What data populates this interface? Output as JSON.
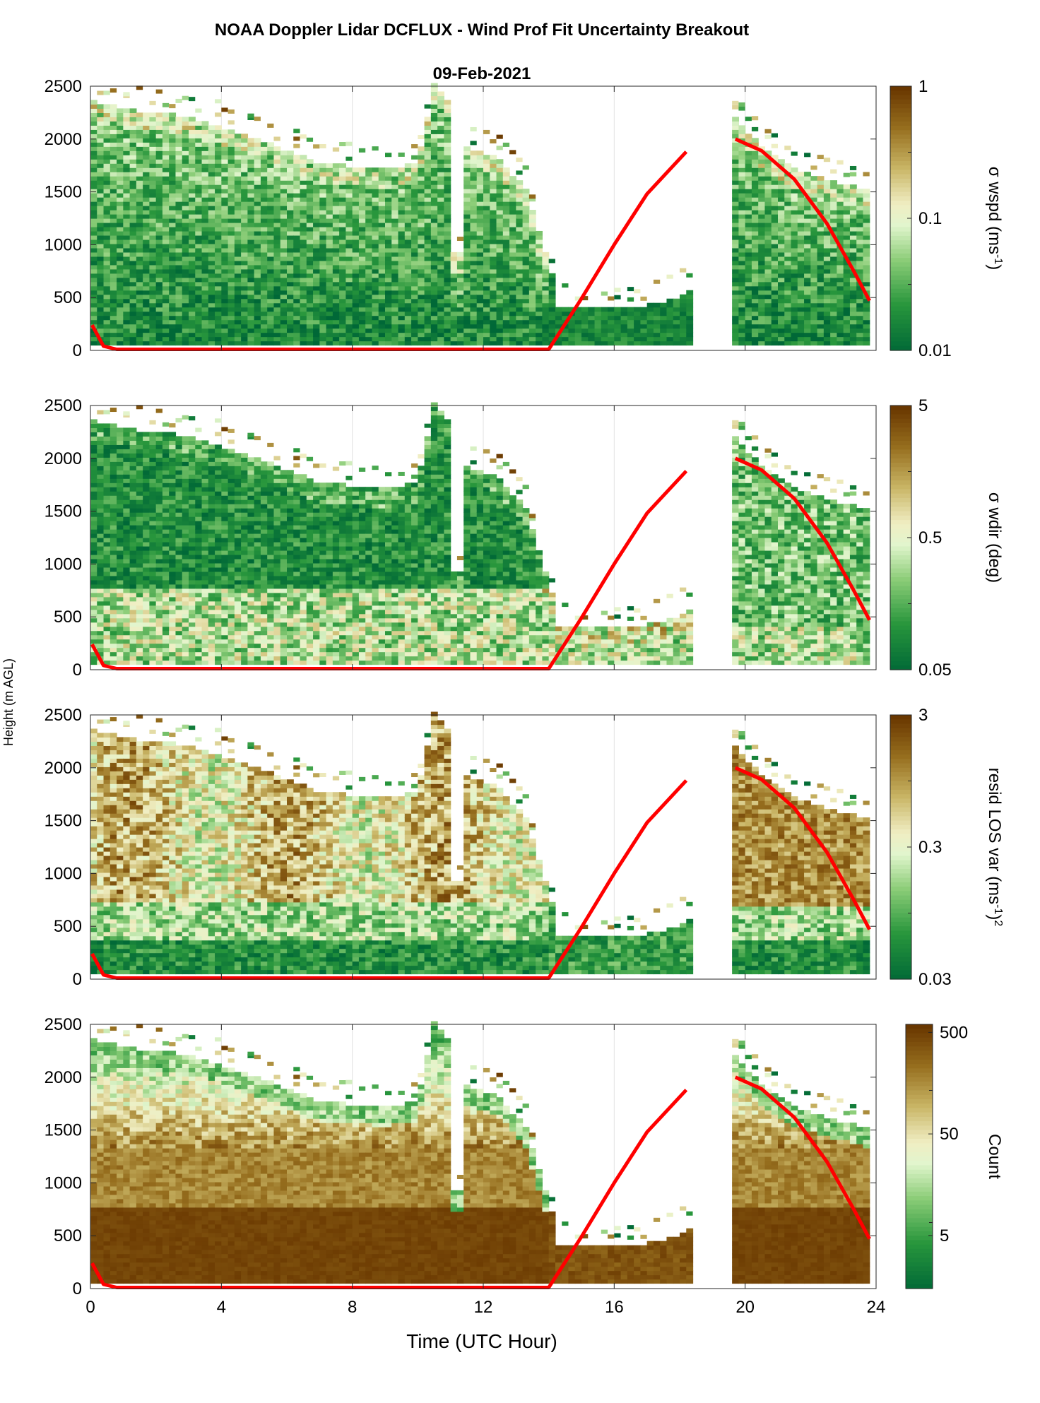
{
  "figure": {
    "title": "NOAA Doppler Lidar DCFLUX - Wind Prof Fit Uncertainty Breakout",
    "subtitle": "09-Feb-2021",
    "ylabel": "Height (m AGL)",
    "xlabel": "Time (UTC Hour)"
  },
  "colors": {
    "dark_green": "#00703a",
    "mid_green": "#3fa33f",
    "light_green": "#d7f0c2",
    "light_yellow": "#f2efc8",
    "olive": "#b09a3a",
    "brown": "#6e3c00",
    "overlay_line": "#ff0000"
  },
  "chart_data": [
    {
      "type": "heatmap",
      "id": "wspd",
      "colorbar_label_main": "σ wspd (ms",
      "colorbar_label_sup": "-1",
      "colorbar_label_end": ")",
      "colorbar_ticks": [
        "0.01",
        "0.1",
        "1"
      ],
      "colorbar_range": [
        0.01,
        1
      ],
      "colorbar_scale": "log",
      "x_range": [
        0,
        24
      ],
      "y_range": [
        0,
        2500
      ],
      "x_ticks": [
        "0",
        "4",
        "8",
        "12",
        "16",
        "20",
        "24"
      ],
      "y_ticks": [
        "0",
        "500",
        "1000",
        "1500",
        "2000",
        "2500"
      ],
      "grid": "vertical",
      "field_pattern": "green-dominant"
    },
    {
      "type": "heatmap",
      "id": "wdir",
      "colorbar_label_main": "σ wdir (deg)",
      "colorbar_label_sup": "",
      "colorbar_label_end": "",
      "colorbar_ticks": [
        "0.05",
        "0.5",
        "5"
      ],
      "colorbar_range": [
        0.05,
        5
      ],
      "colorbar_scale": "log",
      "x_range": [
        0,
        24
      ],
      "y_range": [
        0,
        2500
      ],
      "x_ticks": [
        "0",
        "4",
        "8",
        "12",
        "16",
        "20",
        "24"
      ],
      "y_ticks": [
        "0",
        "500",
        "1000",
        "1500",
        "2000",
        "2500"
      ],
      "grid": "vertical",
      "field_pattern": "green-top-light-bottom"
    },
    {
      "type": "heatmap",
      "id": "resid",
      "colorbar_label_main": "resid LOS var (ms",
      "colorbar_label_sup": "-1",
      "colorbar_label_end": ")",
      "colorbar_label_sup2": "2",
      "colorbar_ticks": [
        "0.03",
        "0.3",
        "3"
      ],
      "colorbar_range": [
        0.03,
        3
      ],
      "colorbar_scale": "log",
      "x_range": [
        0,
        24
      ],
      "y_range": [
        0,
        2500
      ],
      "x_ticks": [
        "0",
        "4",
        "8",
        "12",
        "16",
        "20",
        "24"
      ],
      "y_ticks": [
        "0",
        "500",
        "1000",
        "1500",
        "2000",
        "2500"
      ],
      "grid": "vertical",
      "field_pattern": "brown-mid-green-bottom"
    },
    {
      "type": "heatmap",
      "id": "count",
      "colorbar_label_main": "Count",
      "colorbar_label_sup": "",
      "colorbar_label_end": "",
      "colorbar_ticks": [
        "5",
        "50",
        "500"
      ],
      "colorbar_range": [
        1.5,
        600
      ],
      "colorbar_scale": "log",
      "x_range": [
        0,
        24
      ],
      "y_range": [
        0,
        2500
      ],
      "x_ticks": [
        "0",
        "4",
        "8",
        "12",
        "16",
        "20",
        "24"
      ],
      "y_ticks": [
        "0",
        "500",
        "1000",
        "1500",
        "2000",
        "2500"
      ],
      "grid": "vertical",
      "field_pattern": "brown-bottom-green-top"
    }
  ],
  "data_coverage": {
    "segments": [
      {
        "x_start": 0.0,
        "x_end": 11.1,
        "top_profile": [
          [
            0,
            2350
          ],
          [
            1.5,
            2250
          ],
          [
            3,
            2200
          ],
          [
            5,
            2000
          ],
          [
            7,
            1750
          ],
          [
            9,
            1700
          ],
          [
            10,
            1750
          ],
          [
            10.5,
            2500
          ],
          [
            11.1,
            2300
          ]
        ]
      },
      {
        "x_start": 11.1,
        "x_end": 11.4,
        "top_profile": [
          [
            11.1,
            900
          ],
          [
            11.4,
            900
          ]
        ]
      },
      {
        "x_start": 11.4,
        "x_end": 14.2,
        "top_profile": [
          [
            11.4,
            1900
          ],
          [
            12.5,
            1800
          ],
          [
            13.3,
            1500
          ],
          [
            14.2,
            600
          ]
        ]
      },
      {
        "x_start": 14.2,
        "x_end": 18.4,
        "top_profile": [
          [
            14.2,
            380
          ],
          [
            16,
            380
          ],
          [
            17.3,
            420
          ],
          [
            18.0,
            500
          ],
          [
            18.4,
            550
          ]
        ]
      },
      {
        "x_start": 19.7,
        "x_end": 23.8,
        "top_profile": [
          [
            19.7,
            2200
          ],
          [
            20.5,
            1900
          ],
          [
            21.5,
            1700
          ],
          [
            22.5,
            1600
          ],
          [
            23.8,
            1500
          ]
        ]
      }
    ],
    "bottom": 50
  },
  "overlay_line": {
    "color": "#ff0000",
    "segments": [
      [
        [
          0.05,
          240
        ],
        [
          0.4,
          40
        ],
        [
          0.8,
          10
        ],
        [
          14.0,
          10
        ],
        [
          15.0,
          490
        ],
        [
          16.0,
          1000
        ],
        [
          17.0,
          1480
        ],
        [
          18.2,
          1880
        ]
      ],
      [
        [
          19.7,
          2000
        ],
        [
          20.5,
          1890
        ],
        [
          21.5,
          1620
        ],
        [
          22.5,
          1200
        ],
        [
          23.3,
          760
        ],
        [
          23.8,
          470
        ]
      ]
    ]
  }
}
